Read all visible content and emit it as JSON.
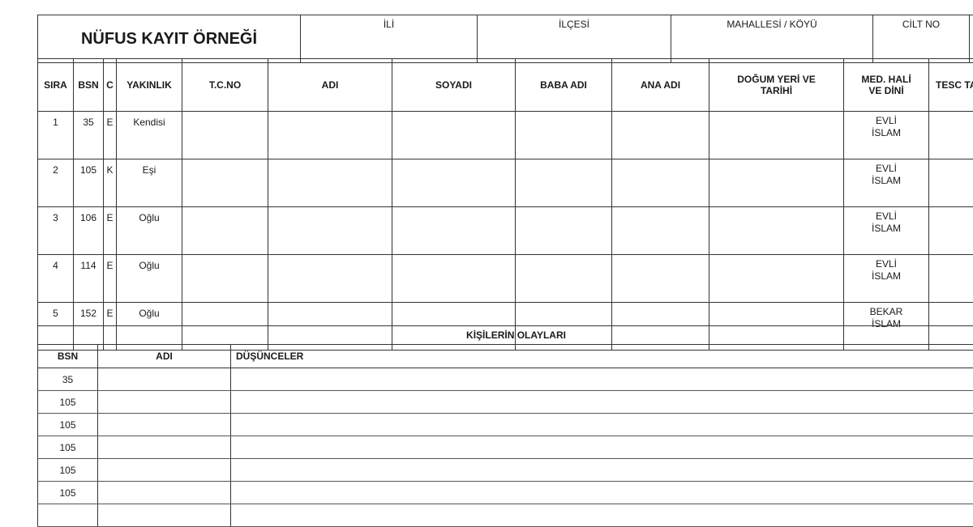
{
  "header": {
    "title": "NÜFUS KAYIT ÖRNEĞİ",
    "fields": [
      "İLİ",
      "İLÇESİ",
      "MAHALLESİ / KÖYÜ",
      "CİLT NO",
      ""
    ]
  },
  "table": {
    "columns": [
      "SIRA",
      "BSN",
      "C",
      "YAKINLIK",
      "T.C.NO",
      "ADI",
      "SOYADI",
      "BABA ADI",
      "ANA ADI",
      "DOĞUM YERİ VE TARİHİ",
      "MED. HALİ VE DİNİ",
      "TESC TARİ"
    ],
    "rows": [
      {
        "sira": "1",
        "bsn": "35",
        "c": "E",
        "yakinlik": "Kendisi",
        "med_hali": "EVLİ",
        "din": "İSLAM"
      },
      {
        "sira": "2",
        "bsn": "105",
        "c": "K",
        "yakinlik": "Eşi",
        "med_hali": "EVLİ",
        "din": "İSLAM"
      },
      {
        "sira": "3",
        "bsn": "106",
        "c": "E",
        "yakinlik": "Oğlu",
        "med_hali": "EVLİ",
        "din": "İSLAM"
      },
      {
        "sira": "4",
        "bsn": "114",
        "c": "E",
        "yakinlik": "Oğlu",
        "med_hali": "EVLİ",
        "din": "İSLAM"
      },
      {
        "sira": "5",
        "bsn": "152",
        "c": "E",
        "yakinlik": "Oğlu",
        "med_hali": "BEKAR",
        "din": "İSLAM"
      }
    ]
  },
  "events": {
    "title": "KİŞİLERİN OLAYLARI",
    "columns": [
      "BSN",
      "ADI",
      "DÜŞÜNCELER"
    ],
    "rows": [
      "35",
      "105",
      "105",
      "105",
      "105",
      "105",
      ""
    ]
  }
}
